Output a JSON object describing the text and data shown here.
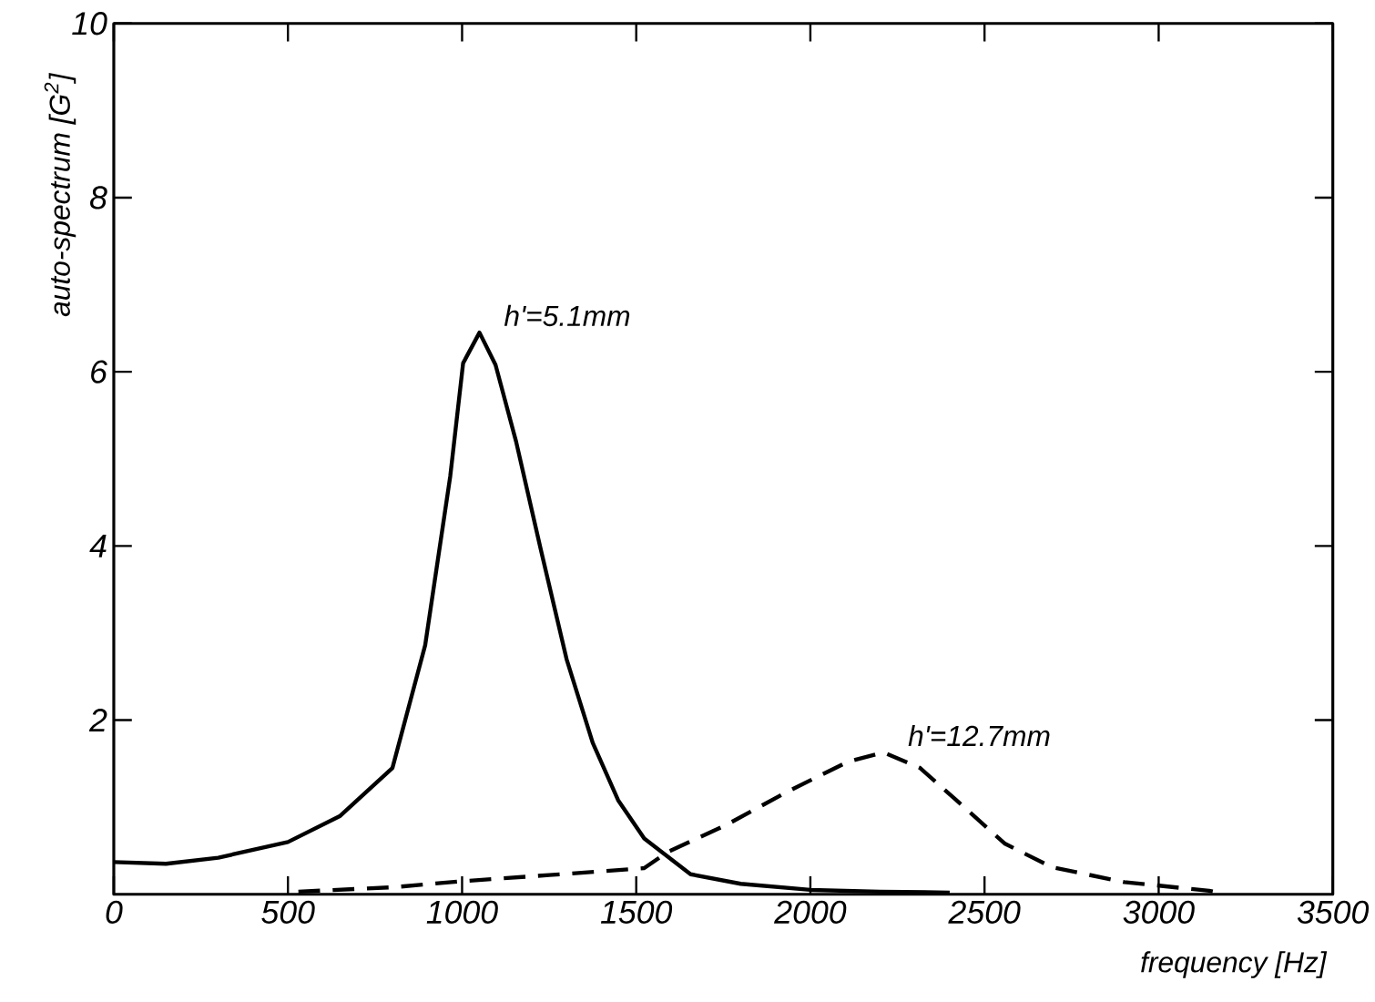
{
  "chart_data": {
    "type": "line",
    "xlabel": "frequency [Hz]",
    "ylabel": "auto-spectrum [G$^{2}$]",
    "xlim": [
      0,
      3500
    ],
    "ylim": [
      0,
      10
    ],
    "xticks": [
      0,
      500,
      1000,
      1500,
      2000,
      2500,
      3000,
      3500
    ],
    "yticks": [
      2,
      4,
      6,
      8,
      10
    ],
    "grid": false,
    "legend": false,
    "marker": "none",
    "series": [
      {
        "name": "h'=5.1mm",
        "color": "#000000",
        "line_style": "solid",
        "x": [
          0,
          150,
          300,
          500,
          650,
          800,
          894,
          966,
          1003,
          1050,
          1096,
          1155,
          1226,
          1300,
          1375,
          1448,
          1523,
          1656,
          1800,
          2000,
          2200,
          2400
        ],
        "values": [
          0.37,
          0.35,
          0.42,
          0.6,
          0.9,
          1.45,
          2.86,
          4.8,
          6.1,
          6.45,
          6.08,
          5.2,
          3.96,
          2.7,
          1.74,
          1.08,
          0.64,
          0.23,
          0.12,
          0.05,
          0.03,
          0.02
        ]
      },
      {
        "name": "h'=12.7mm",
        "color": "#000000",
        "line_style": "dashed",
        "x": [
          530,
          800,
          1000,
          1250,
          1523,
          1588,
          1760,
          1935,
          2107,
          2210,
          2315,
          2419,
          2559,
          2694,
          2901,
          3145,
          3170
        ],
        "values": [
          0.03,
          0.08,
          0.15,
          0.22,
          0.3,
          0.48,
          0.8,
          1.18,
          1.52,
          1.63,
          1.45,
          1.08,
          0.58,
          0.31,
          0.14,
          0.04,
          0.02
        ]
      }
    ]
  }
}
